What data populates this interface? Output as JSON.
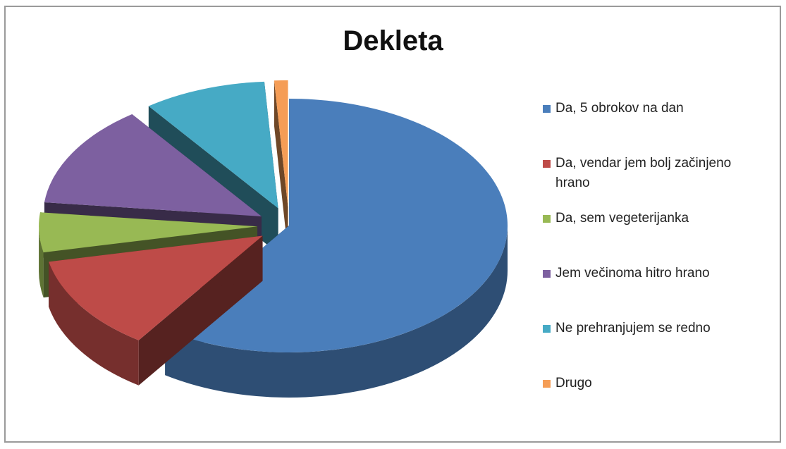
{
  "chart_data": {
    "type": "pie",
    "title": "Dekleta",
    "categories": [
      "Da, 5 obrokov na dan",
      "Da, vendar jem bolj začinjeno hrano",
      "Da, sem vegeterijanka",
      "Jem večinoma hitro hrano",
      "Ne prehranjujem se redno",
      "Drugo"
    ],
    "values": [
      59,
      12,
      5,
      13,
      9,
      1
    ],
    "colors": [
      "#4a7ebb",
      "#be4b48",
      "#98b954",
      "#7d60a0",
      "#46aac5",
      "#f59d56"
    ],
    "legend": "right",
    "style": "3d-exploded"
  }
}
